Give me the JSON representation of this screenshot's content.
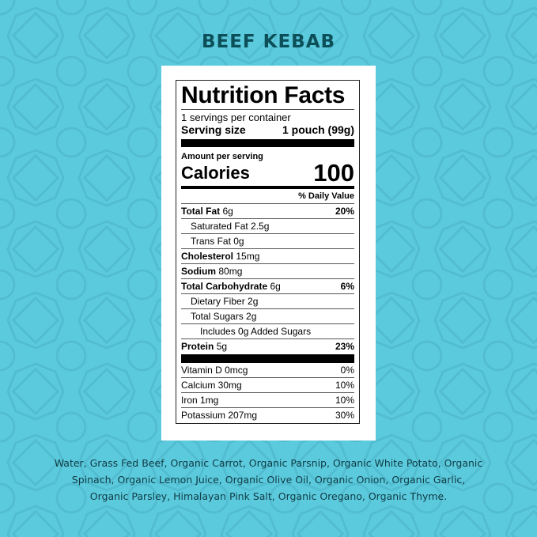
{
  "product_title": "BEEF KEBAB",
  "colors": {
    "background": "#5ccadd",
    "title": "#0c4f59"
  },
  "label": {
    "heading": "Nutrition Facts",
    "servings": "1 servings per container",
    "serving_size_label": "Serving size",
    "serving_size_value": "1 pouch (99g)",
    "amount_per_serving": "Amount per serving",
    "calories_label": "Calories",
    "calories_value": "100",
    "daily_value_header": "% Daily Value",
    "nutrients": [
      {
        "name": "Total Fat",
        "amount": "6g",
        "dv": "20%"
      },
      {
        "name": "Saturated Fat 2.5g",
        "amount": "",
        "dv": ""
      },
      {
        "name": "Trans Fat 0g",
        "amount": "",
        "dv": ""
      },
      {
        "name": "Cholesterol",
        "amount": "15mg",
        "dv": ""
      },
      {
        "name": "Sodium",
        "amount": "80mg",
        "dv": ""
      },
      {
        "name": "Total Carbohydrate",
        "amount": "6g",
        "dv": "6%"
      },
      {
        "name": "Dietary Fiber 2g",
        "amount": "",
        "dv": ""
      },
      {
        "name": "Total Sugars 2g",
        "amount": "",
        "dv": ""
      },
      {
        "name": "Includes 0g Added Sugars",
        "amount": "",
        "dv": ""
      },
      {
        "name": "Protein",
        "amount": "5g",
        "dv": "23%"
      }
    ],
    "vitamins": [
      {
        "name": "Vitamin D 0mcg",
        "dv": "0%"
      },
      {
        "name": "Calcium 30mg",
        "dv": "10%"
      },
      {
        "name": "Iron 1mg",
        "dv": "10%"
      },
      {
        "name": "Potassium 207mg",
        "dv": "30%"
      }
    ]
  },
  "ingredients": [
    "Water, Grass Fed Beef, Organic Carrot, Organic Parsnip, Organic White Potato, Organic",
    "Spinach, Organic Lemon Juice, Organic Olive Oil, Organic Onion, Organic Garlic,",
    "Organic Parsley, Himalayan Pink Salt, Organic Oregano, Organic Thyme."
  ]
}
